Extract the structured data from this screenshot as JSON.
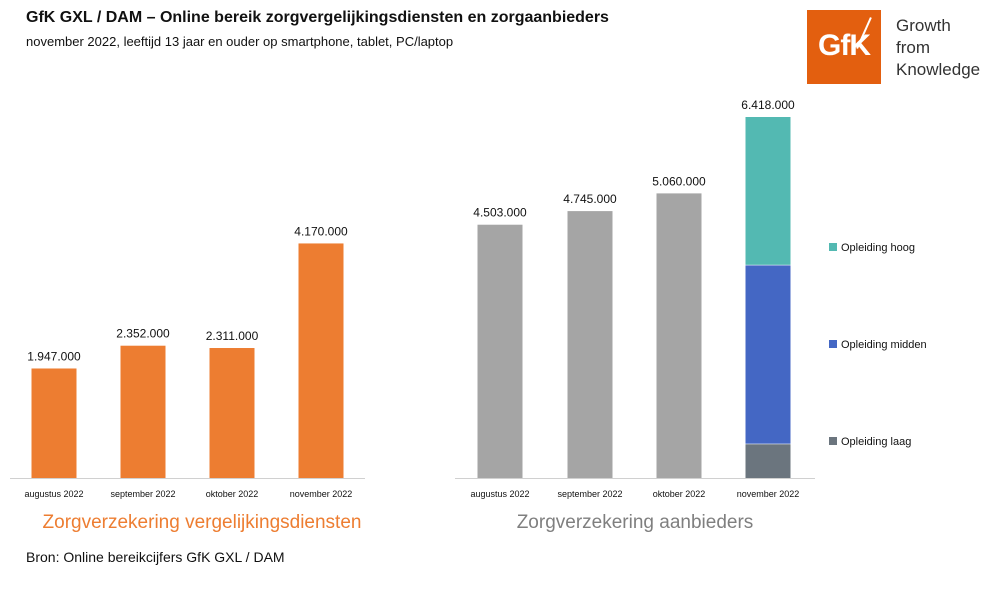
{
  "header": {
    "title": "GfK GXL / DAM – Online bereik zorgvergelijkingsdiensten en zorgaanbieders",
    "subtitle": "november 2022, leeftijd 13 jaar en ouder op smartphone, tablet, PC/laptop"
  },
  "logo": {
    "text": "GfK",
    "tagline": [
      "Growth",
      "from",
      "Knowledge"
    ],
    "color": "#e35f0f"
  },
  "footer": {
    "source": "Bron: Online bereikcijfers GfK GXL / DAM"
  },
  "chart_data": [
    {
      "type": "bar",
      "title": "Zorgverzekering vergelijkingsdiensten",
      "title_color": "#ed7d31",
      "categories": [
        "augustus 2022",
        "september 2022",
        "oktober 2022",
        "november 2022"
      ],
      "values": [
        1947000,
        2352000,
        2311000,
        4170000
      ],
      "data_labels": [
        "1.947.000",
        "2.352.000",
        "2.311.000",
        "4.170.000"
      ],
      "color": "#ed7d31",
      "ylim": [
        0,
        7000000
      ]
    },
    {
      "type": "bar",
      "title": "Zorgverzekering aanbieders",
      "title_color": "#7f7f7f",
      "categories": [
        "augustus 2022",
        "september 2022",
        "oktober 2022",
        "november 2022"
      ],
      "values": [
        4503000,
        4745000,
        5060000,
        6418000
      ],
      "data_labels": [
        "4.503.000",
        "4.745.000",
        "5.060.000",
        "6.418.000"
      ],
      "color": "#a5a5a5",
      "ylim": [
        0,
        7000000
      ],
      "stacked_last": {
        "category": "november 2022",
        "series": [
          {
            "name": "Opleiding laag",
            "value": 610000,
            "color": "#6b757e"
          },
          {
            "name": "Opleiding midden",
            "value": 3180000,
            "color": "#4467c4"
          },
          {
            "name": "Opleiding hoog",
            "value": 2628000,
            "color": "#53b9b2"
          }
        ]
      },
      "legend": {
        "placement": "right",
        "items": [
          "Opleiding hoog",
          "Opleiding midden",
          "Opleiding laag"
        ]
      }
    }
  ]
}
